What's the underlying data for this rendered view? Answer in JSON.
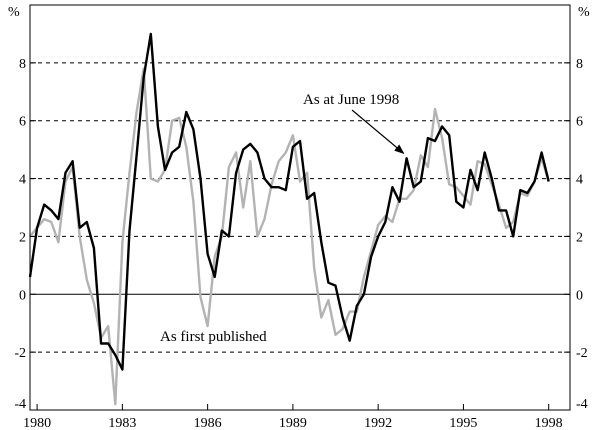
{
  "chart_data": {
    "type": "line",
    "title": "",
    "xlabel": "",
    "ylabel": "",
    "unit_left": "%",
    "unit_right": "%",
    "xlim": [
      1979.75,
      1998.75
    ],
    "ylim": [
      -4,
      10
    ],
    "xticks": [
      {
        "value": 1980,
        "label": "1980"
      },
      {
        "value": 1983,
        "label": "1983"
      },
      {
        "value": 1986,
        "label": "1986"
      },
      {
        "value": 1989,
        "label": "1989"
      },
      {
        "value": 1992,
        "label": "1992"
      },
      {
        "value": 1995,
        "label": "1995"
      },
      {
        "value": 1998,
        "label": "1998"
      }
    ],
    "yticks": [
      {
        "value": -4,
        "label": "-4"
      },
      {
        "value": -2,
        "label": "-2"
      },
      {
        "value": 0,
        "label": "0"
      },
      {
        "value": 2,
        "label": "2"
      },
      {
        "value": 4,
        "label": "4"
      },
      {
        "value": 6,
        "label": "6"
      },
      {
        "value": 8,
        "label": "8"
      }
    ],
    "grid": "horizontal dashed",
    "colors": {
      "june_1998": "#000000",
      "first_published": "#b3b3b3",
      "grid": "#000000"
    },
    "series": [
      {
        "name": "As at June 1998",
        "color": "#000000",
        "x": [
          1979.75,
          1980.0,
          1980.25,
          1980.5,
          1980.75,
          1981.0,
          1981.25,
          1981.5,
          1981.75,
          1982.0,
          1982.25,
          1982.5,
          1982.75,
          1983.0,
          1983.25,
          1983.5,
          1983.75,
          1984.0,
          1984.25,
          1984.5,
          1984.75,
          1985.0,
          1985.25,
          1985.5,
          1985.75,
          1986.0,
          1986.25,
          1986.5,
          1986.75,
          1987.0,
          1987.25,
          1987.5,
          1987.75,
          1988.0,
          1988.25,
          1988.5,
          1988.75,
          1989.0,
          1989.25,
          1989.5,
          1989.75,
          1990.0,
          1990.25,
          1990.5,
          1990.75,
          1991.0,
          1991.25,
          1991.5,
          1991.75,
          1992.0,
          1992.25,
          1992.5,
          1992.75,
          1993.0,
          1993.25,
          1993.5,
          1993.75,
          1994.0,
          1994.25,
          1994.5,
          1994.75,
          1995.0,
          1995.25,
          1995.5,
          1995.75,
          1996.0,
          1996.25,
          1996.5,
          1996.75,
          1997.0,
          1997.25,
          1997.5,
          1997.75,
          1998.0
        ],
        "values": [
          0.6,
          2.3,
          3.1,
          2.9,
          2.6,
          4.2,
          4.6,
          2.3,
          2.5,
          1.6,
          -1.7,
          -1.7,
          -2.1,
          -2.6,
          2.2,
          4.8,
          7.5,
          9.0,
          5.8,
          4.3,
          4.9,
          5.1,
          6.3,
          5.7,
          4.0,
          1.4,
          0.6,
          2.2,
          2.0,
          4.2,
          5.0,
          5.2,
          4.9,
          4.0,
          3.7,
          3.7,
          3.6,
          5.1,
          5.3,
          3.3,
          3.5,
          1.8,
          0.4,
          0.3,
          -0.8,
          -1.6,
          -0.4,
          0.0,
          1.3,
          2.0,
          2.5,
          3.7,
          3.2,
          4.7,
          3.7,
          3.9,
          5.4,
          5.3,
          5.8,
          5.5,
          3.2,
          3.0,
          4.3,
          3.6,
          4.9,
          4.0,
          2.9,
          2.9,
          2.0,
          3.6,
          3.5,
          3.9,
          4.9,
          3.9
        ]
      },
      {
        "name": "As first published",
        "color": "#b3b3b3",
        "x": [
          1979.75,
          1980.0,
          1980.25,
          1980.5,
          1980.75,
          1981.0,
          1981.25,
          1981.5,
          1981.75,
          1982.0,
          1982.25,
          1982.5,
          1982.75,
          1983.0,
          1983.25,
          1983.5,
          1983.75,
          1984.0,
          1984.25,
          1984.5,
          1984.75,
          1985.0,
          1985.25,
          1985.5,
          1985.75,
          1986.0,
          1986.25,
          1986.5,
          1986.75,
          1987.0,
          1987.25,
          1987.5,
          1987.75,
          1988.0,
          1988.25,
          1988.5,
          1988.75,
          1989.0,
          1989.25,
          1989.5,
          1989.75,
          1990.0,
          1990.25,
          1990.5,
          1990.75,
          1991.0,
          1991.25,
          1991.5,
          1991.75,
          1992.0,
          1992.25,
          1992.5,
          1992.75,
          1993.0,
          1993.25,
          1993.5,
          1993.75,
          1994.0,
          1994.25,
          1994.5,
          1994.75,
          1995.0,
          1995.25,
          1995.5,
          1995.75,
          1996.0,
          1996.25,
          1996.5,
          1996.75,
          1997.0,
          1997.25,
          1997.5,
          1997.75,
          1998.0
        ],
        "values": [
          2.0,
          2.3,
          2.6,
          2.5,
          1.8,
          3.9,
          4.4,
          2.0,
          0.5,
          -0.3,
          -1.5,
          -1.1,
          -3.8,
          1.8,
          4.2,
          6.3,
          7.8,
          4.0,
          3.9,
          4.3,
          6.0,
          6.1,
          5.1,
          3.2,
          -0.1,
          -1.1,
          1.3,
          2.0,
          4.4,
          4.9,
          3.0,
          4.6,
          2.0,
          2.6,
          3.8,
          4.6,
          4.9,
          5.5,
          3.9,
          4.2,
          0.9,
          -0.8,
          -0.2,
          -1.4,
          -1.2,
          -0.6,
          -0.6,
          0.6,
          1.5,
          2.4,
          2.7,
          2.5,
          3.3,
          3.3,
          3.6,
          4.8,
          4.4,
          6.4,
          5.4,
          3.8,
          3.7,
          3.4,
          3.1,
          4.6,
          4.5,
          3.8,
          3.1,
          2.3,
          2.5,
          3.5,
          3.4,
          3.9,
          4.7,
          3.9
        ]
      }
    ],
    "annotations": [
      {
        "text": "As at June 1998",
        "target_series": 0,
        "target_x": 1993.0
      },
      {
        "text": "As first published",
        "target_series": 1
      }
    ]
  }
}
